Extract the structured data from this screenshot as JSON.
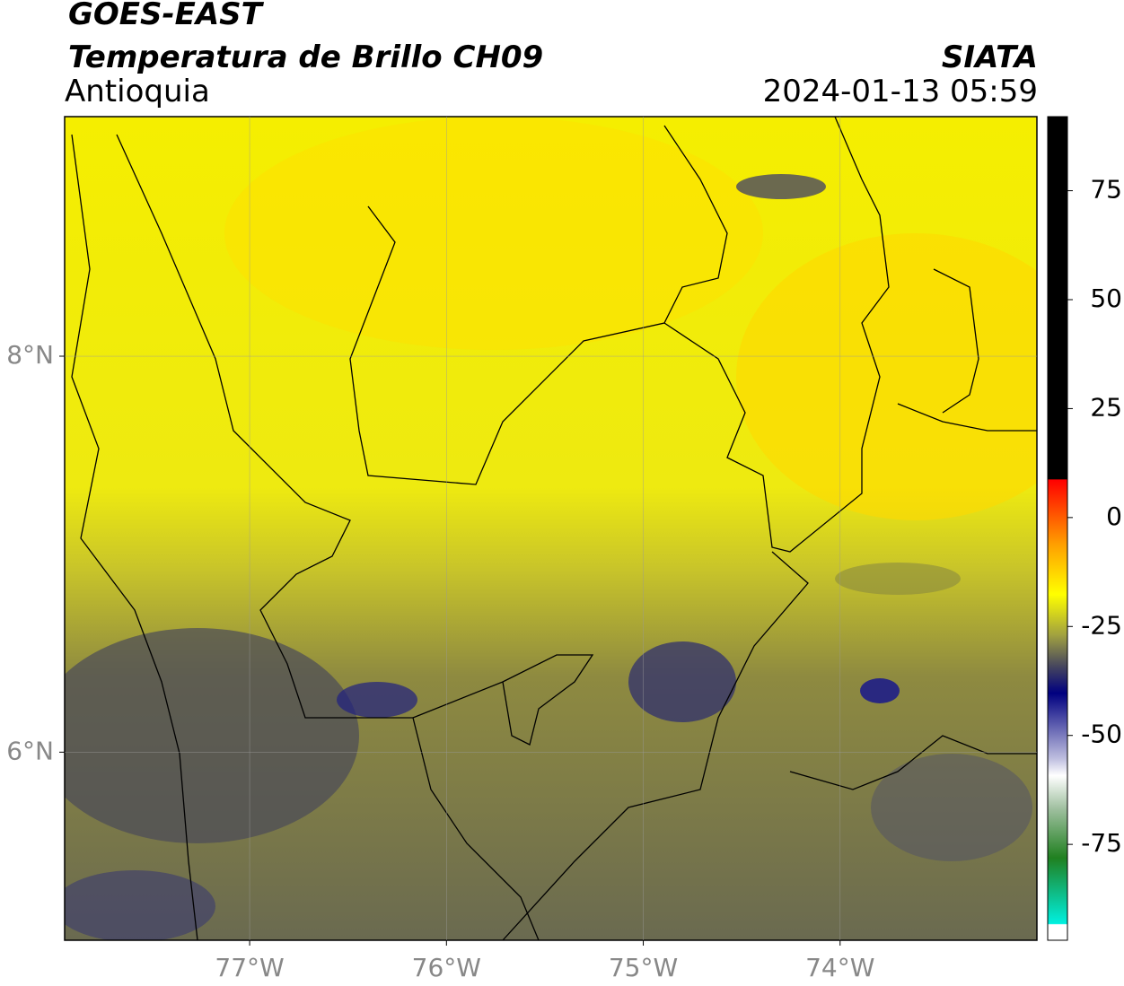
{
  "header": {
    "title": "GOES-EAST",
    "subtitle": "Temperatura de Brillo CH09",
    "region": "Antioquia",
    "source": "SIATA",
    "datetime": "2024-01-13 05:59"
  },
  "map": {
    "xlim": [
      -77.94,
      -73.0
    ],
    "ylim": [
      5.05,
      9.21
    ],
    "xticks": [
      {
        "value": -77,
        "label": "77°W"
      },
      {
        "value": -76,
        "label": "76°W"
      },
      {
        "value": -75,
        "label": "75°W"
      },
      {
        "value": -74,
        "label": "74°W"
      }
    ],
    "yticks": [
      {
        "value": 8,
        "label": "8°N"
      },
      {
        "value": 6,
        "label": "6°N"
      }
    ]
  },
  "colorbar": {
    "lim": [
      -97,
      92
    ],
    "ticks": [
      75,
      50,
      25,
      0,
      -25,
      -50,
      -75
    ]
  }
}
